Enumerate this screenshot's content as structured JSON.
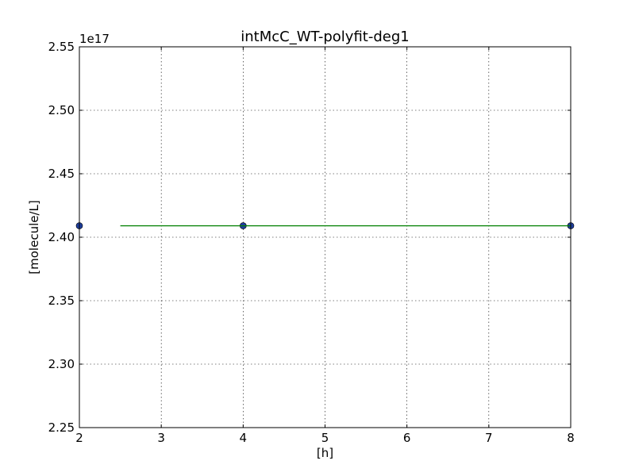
{
  "chart_data": {
    "type": "scatter",
    "title": "intMcC_WT-polyfit-deg1",
    "xlabel": "[h]",
    "ylabel": "[molecule/L]",
    "y_offset_label": "1e17",
    "xlim": [
      2,
      8
    ],
    "ylim": [
      2.25,
      2.55
    ],
    "y_scale_exponent": 17,
    "x_ticks": [
      "2",
      "3",
      "4",
      "5",
      "6",
      "7",
      "8"
    ],
    "y_ticks": [
      "2.25",
      "2.30",
      "2.35",
      "2.40",
      "2.45",
      "2.50",
      "2.55"
    ],
    "grid": true,
    "series": [
      {
        "kind": "points",
        "color": "#1f3f9f",
        "x": [
          2,
          4,
          8
        ],
        "y": [
          2.409,
          2.409,
          2.409
        ]
      },
      {
        "kind": "line",
        "color": "#008000",
        "x": [
          2.5,
          8
        ],
        "y": [
          2.409,
          2.409
        ]
      }
    ]
  }
}
